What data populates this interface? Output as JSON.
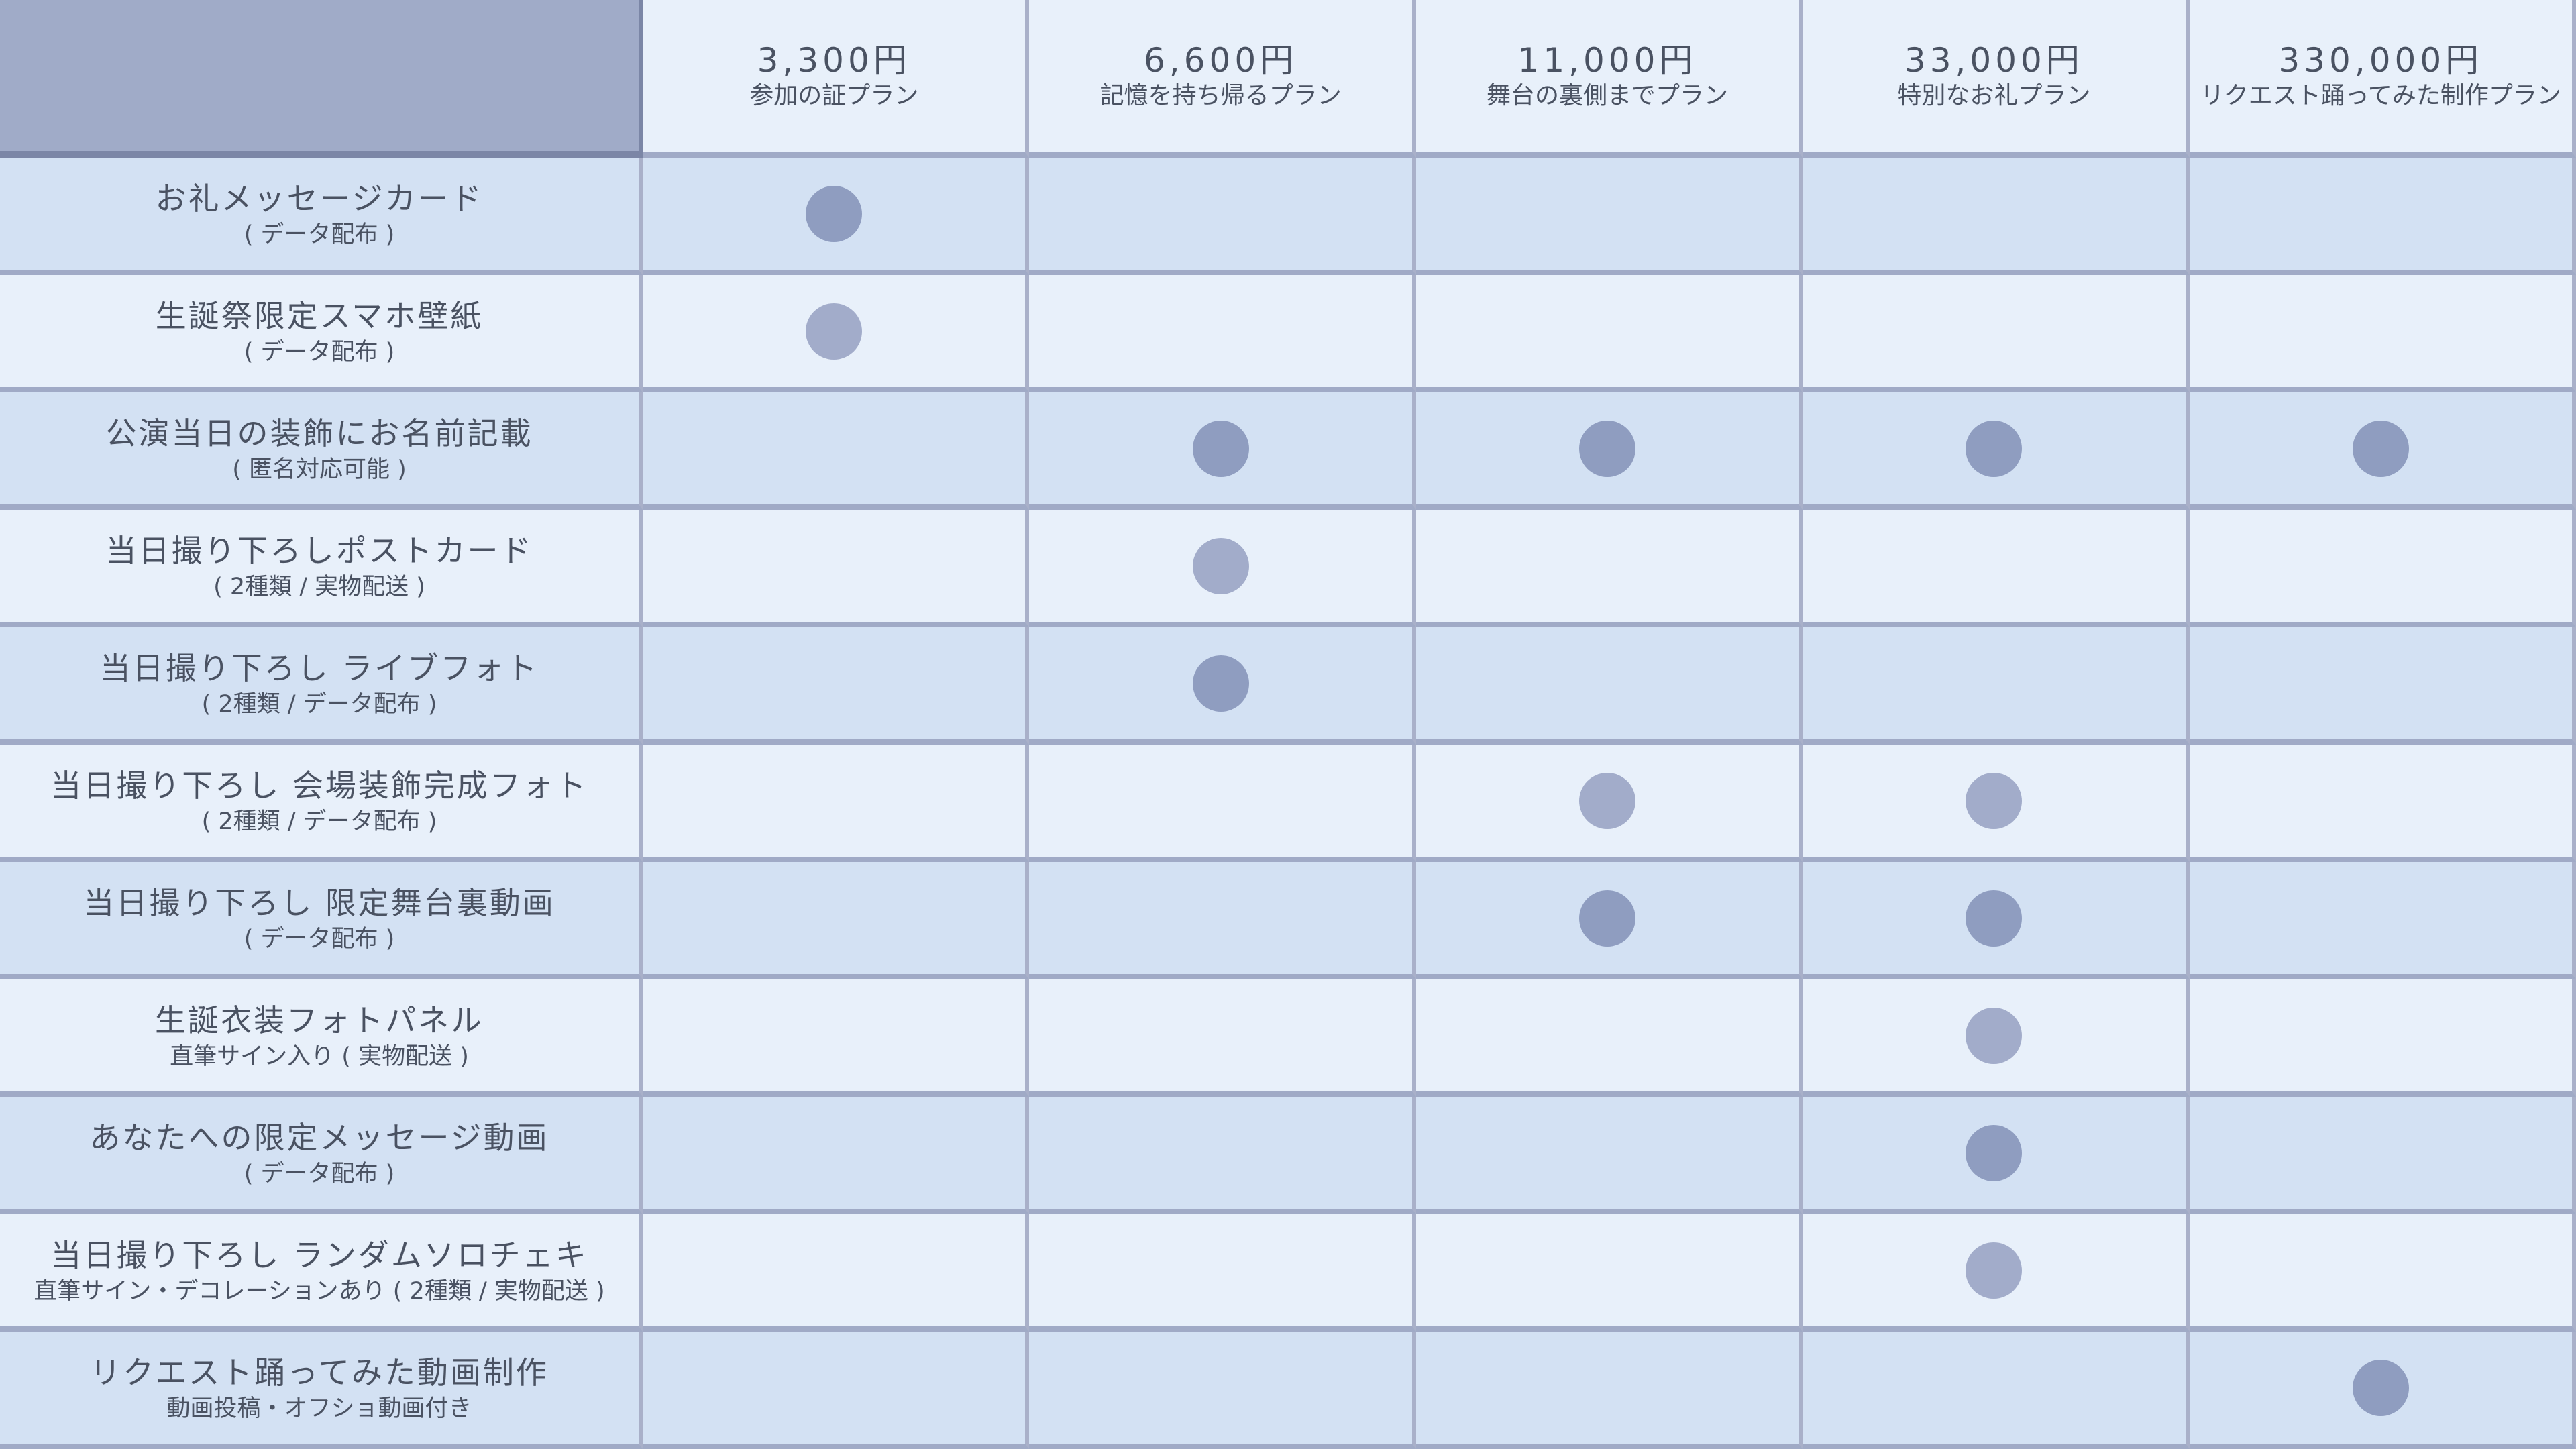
{
  "plans": [
    {
      "price": "3,300円",
      "name": "参加の証プラン"
    },
    {
      "price": "6,600円",
      "name": "記憶を持ち帰るプラン"
    },
    {
      "price": "11,000円",
      "name": "舞台の裏側までプラン"
    },
    {
      "price": "33,000円",
      "name": "特別なお礼プラン"
    },
    {
      "price": "330,000円",
      "name": "リクエスト踊ってみた制作プラン"
    }
  ],
  "rows": [
    {
      "title": "お礼メッセージカード",
      "sub": "( データ配布 )",
      "included": [
        true,
        false,
        false,
        false,
        false
      ]
    },
    {
      "title": "生誕祭限定スマホ壁紙",
      "sub": "( データ配布 )",
      "included": [
        true,
        false,
        false,
        false,
        false
      ]
    },
    {
      "title": "公演当日の装飾にお名前記載",
      "sub": "( 匿名対応可能 )",
      "included": [
        false,
        true,
        true,
        true,
        true
      ]
    },
    {
      "title": "当日撮り下ろしポストカード",
      "sub": "( 2種類 / 実物配送 )",
      "included": [
        false,
        true,
        false,
        false,
        false
      ]
    },
    {
      "title": "当日撮り下ろし ライブフォト",
      "sub": "( 2種類 / データ配布 )",
      "included": [
        false,
        true,
        false,
        false,
        false
      ]
    },
    {
      "title": "当日撮り下ろし 会場装飾完成フォト",
      "sub": "( 2種類 / データ配布 )",
      "included": [
        false,
        false,
        true,
        true,
        false
      ]
    },
    {
      "title": "当日撮り下ろし 限定舞台裏動画",
      "sub": "( データ配布 )",
      "included": [
        false,
        false,
        true,
        true,
        false
      ]
    },
    {
      "title": "生誕衣装フォトパネル",
      "sub": "直筆サイン入り ( 実物配送 )",
      "included": [
        false,
        false,
        false,
        true,
        false
      ]
    },
    {
      "title": "あなたへの限定メッセージ動画",
      "sub": "( データ配布 )",
      "included": [
        false,
        false,
        false,
        true,
        false
      ]
    },
    {
      "title": "当日撮り下ろし ランダムソロチェキ",
      "sub": "直筆サイン・デコレーションあり ( 2種類 / 実物配送 )",
      "included": [
        false,
        false,
        false,
        true,
        false
      ]
    },
    {
      "title": "リクエスト踊ってみた動画制作",
      "sub": "動画投稿・オフショ動画付き",
      "included": [
        false,
        false,
        false,
        false,
        true
      ]
    }
  ],
  "colors": {
    "dot_dark": "#8f9dc0",
    "dot_light": "#a2acca",
    "row_blue": "#d3e1f3",
    "row_light": "#e8f0fa",
    "header_corner": "#a0abc8",
    "text": "#4a5262"
  },
  "included_marker_icon": "filled-circle"
}
